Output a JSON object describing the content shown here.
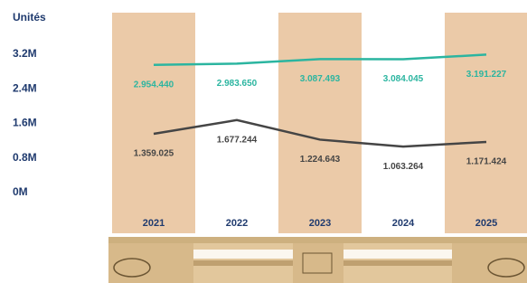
{
  "chart_data": {
    "type": "line",
    "y_label": "Unités",
    "categories": [
      "2021",
      "2022",
      "2023",
      "2024",
      "2025"
    ],
    "series": [
      {
        "color": "#2bb5a0",
        "values": [
          2954440,
          2983650,
          3087493,
          3084045,
          3191227
        ],
        "value_labels": [
          "2.954.440",
          "2.983.650",
          "3.087.493",
          "3.084.045",
          "3.191.227"
        ]
      },
      {
        "color": "#454545",
        "values": [
          1359025,
          1677244,
          1224643,
          1063264,
          1171424
        ],
        "value_labels": [
          "1.359.025",
          "1.677.244",
          "1.224.643",
          "1.063.264",
          "1.171.424"
        ]
      }
    ],
    "ylim": [
      0,
      3200000
    ],
    "yticks": [
      {
        "value": 0,
        "label": "0M"
      },
      {
        "value": 800000,
        "label": "0.8M"
      },
      {
        "value": 1600000,
        "label": "1.6M"
      },
      {
        "value": 2400000,
        "label": "2.4M"
      },
      {
        "value": 3200000,
        "label": "3.2M"
      }
    ],
    "band_color": "#ebcaa8"
  }
}
